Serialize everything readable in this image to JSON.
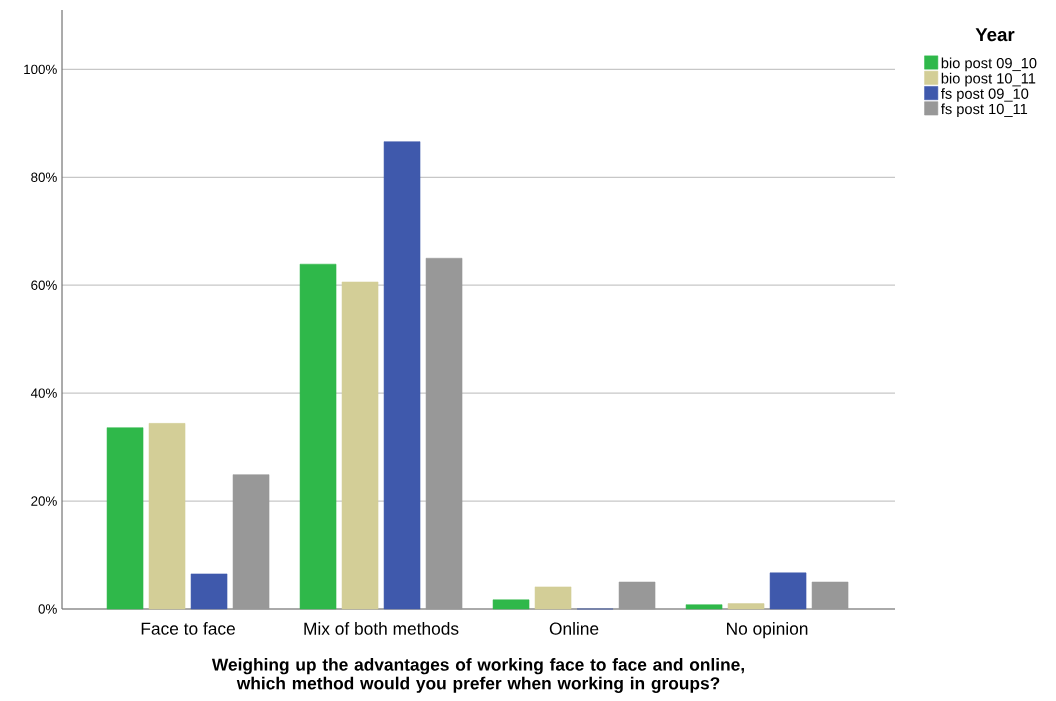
{
  "chart_data": {
    "type": "bar",
    "xlabel": "Weighing up the advantages of working face to face and online, which method would you prefer when working in groups?",
    "legend_title": "Year",
    "categories": [
      "Face to face",
      "Mix of both methods",
      "Online",
      "No opinion"
    ],
    "series": [
      {
        "name": "bio post 09_10",
        "color": "#2fb84a",
        "values": [
          33.6,
          63.9,
          1.7,
          0.8
        ]
      },
      {
        "name": "bio post 10_11",
        "color": "#d3ce97",
        "values": [
          34.4,
          60.6,
          4.1,
          1.0
        ]
      },
      {
        "name": "fs post 09_10",
        "color": "#3f59ac",
        "values": [
          6.5,
          86.6,
          0,
          6.7
        ]
      },
      {
        "name": "fs post 10_11",
        "color": "#989898",
        "values": [
          24.9,
          65.0,
          5.0,
          5.0
        ]
      }
    ],
    "ylim": [
      0,
      111
    ],
    "yticks": [
      {
        "value": 0,
        "label": "0%"
      },
      {
        "value": 20,
        "label": "20%"
      },
      {
        "value": 40,
        "label": "40%"
      },
      {
        "value": 60,
        "label": "60%"
      },
      {
        "value": 80,
        "label": "80%"
      },
      {
        "value": 100,
        "label": "100%"
      }
    ],
    "grid": "y",
    "legend": "top right"
  }
}
